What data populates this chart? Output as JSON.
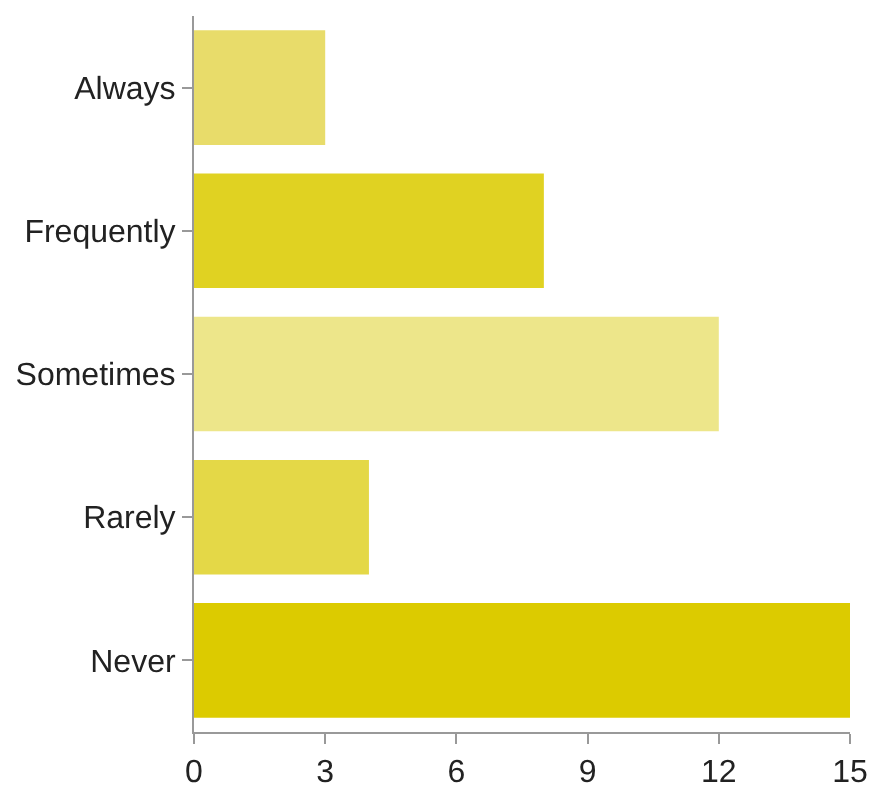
{
  "chart_data": {
    "type": "bar",
    "orientation": "horizontal",
    "categories": [
      "Always",
      "Frequently",
      "Sometimes",
      "Rarely",
      "Never"
    ],
    "values": [
      3,
      8,
      12,
      4,
      15
    ],
    "colors": [
      "#e8dc6a",
      "#e0d222",
      "#ede68a",
      "#e4d847",
      "#dccb00"
    ],
    "xlim": [
      0,
      15
    ],
    "xticks": [
      0,
      3,
      6,
      9,
      12,
      15
    ]
  }
}
